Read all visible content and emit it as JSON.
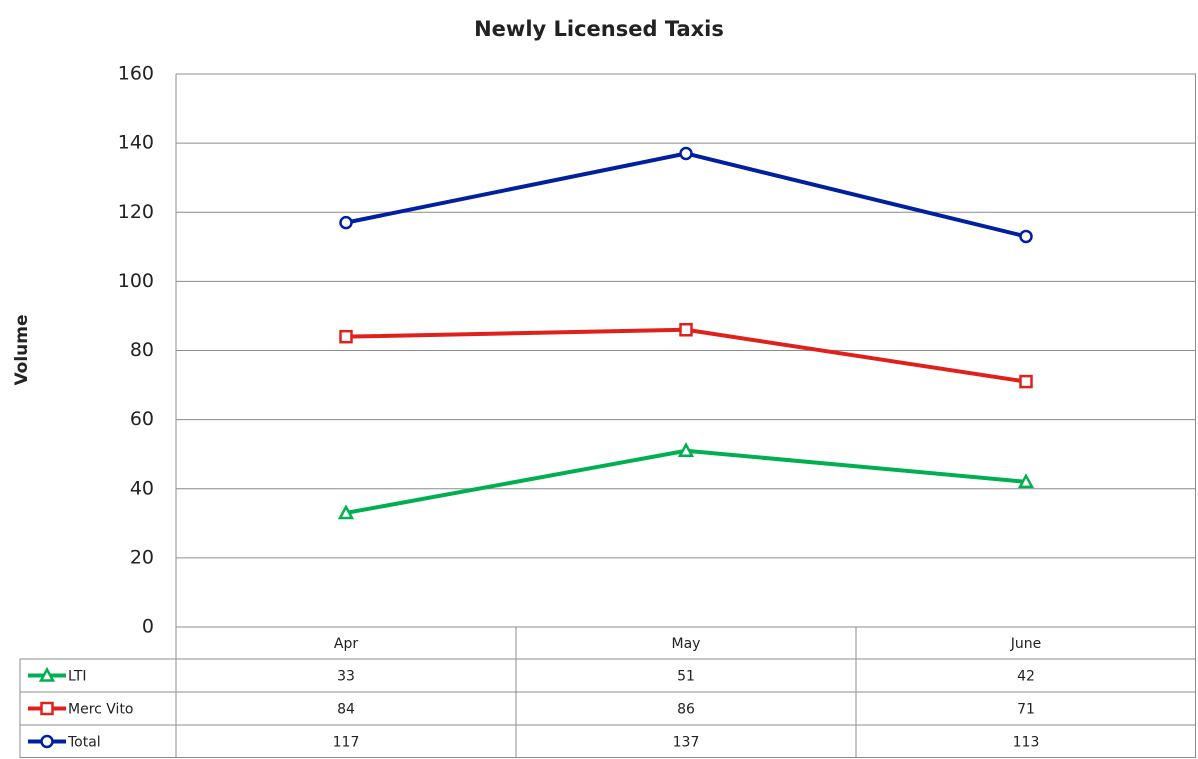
{
  "chart_data": {
    "type": "line",
    "title": "Newly Licensed Taxis",
    "y_label": "Volume",
    "categories": [
      "Apr",
      "May",
      "June"
    ],
    "series": [
      {
        "name": "LTI",
        "color": "#00b050",
        "marker": "triangle",
        "values": [
          33,
          51,
          42
        ]
      },
      {
        "name": "Merc Vito",
        "color": "#e0201b",
        "marker": "square",
        "values": [
          84,
          86,
          71
        ]
      },
      {
        "name": "Total",
        "color": "#0020a0",
        "marker": "circle",
        "values": [
          117,
          137,
          113
        ]
      }
    ],
    "ylim": [
      0,
      160
    ],
    "yticks": [
      0,
      20,
      40,
      60,
      80,
      100,
      120,
      140,
      160
    ],
    "grid": true,
    "data_table": true
  }
}
